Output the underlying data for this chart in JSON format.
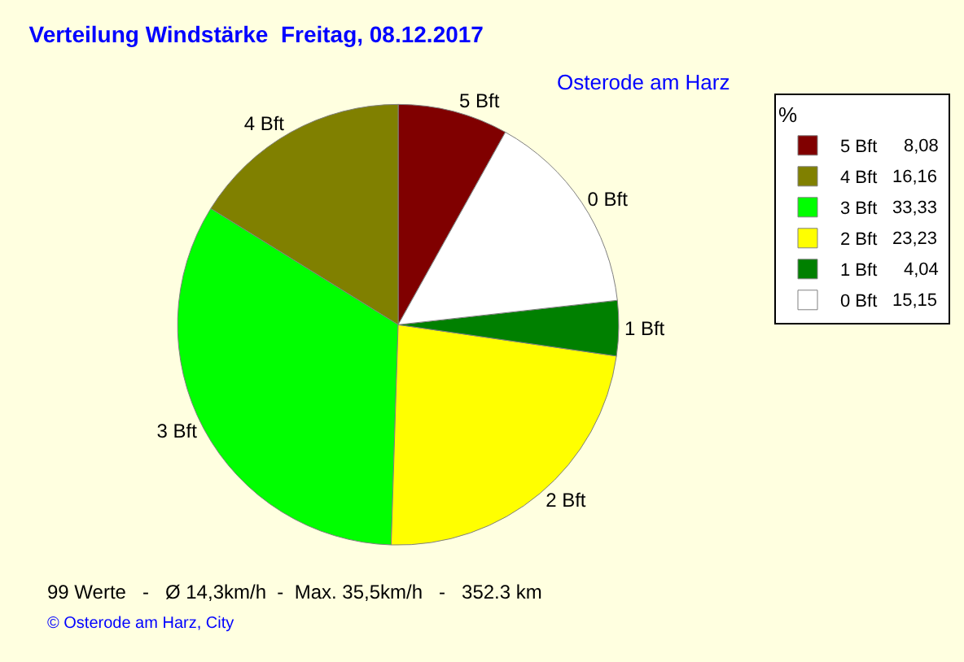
{
  "chart_data": {
    "type": "pie",
    "title": "Verteilung Windstärke  Freitag, 08.12.2017",
    "subtitle": "Osterode am Harz",
    "categories": [
      "5 Bft",
      "4 Bft",
      "3 Bft",
      "2 Bft",
      "1 Bft",
      "0 Bft"
    ],
    "values": [
      8.08,
      16.16,
      33.33,
      23.23,
      4.04,
      15.15
    ],
    "value_labels": [
      "8,08",
      "16,16",
      "33,33",
      "23,23",
      "4,04",
      "15,15"
    ],
    "colors": [
      "#800000",
      "#808000",
      "#00ff00",
      "#ffff00",
      "#008000",
      "#ffffff"
    ],
    "legend": "top right",
    "legend_title": "%",
    "annotations": [
      "99 Werte   -   Ø 14,3km/h  -  Max. 35,5km/h   -   352.3 km",
      "© Osterode am Harz, City"
    ]
  }
}
